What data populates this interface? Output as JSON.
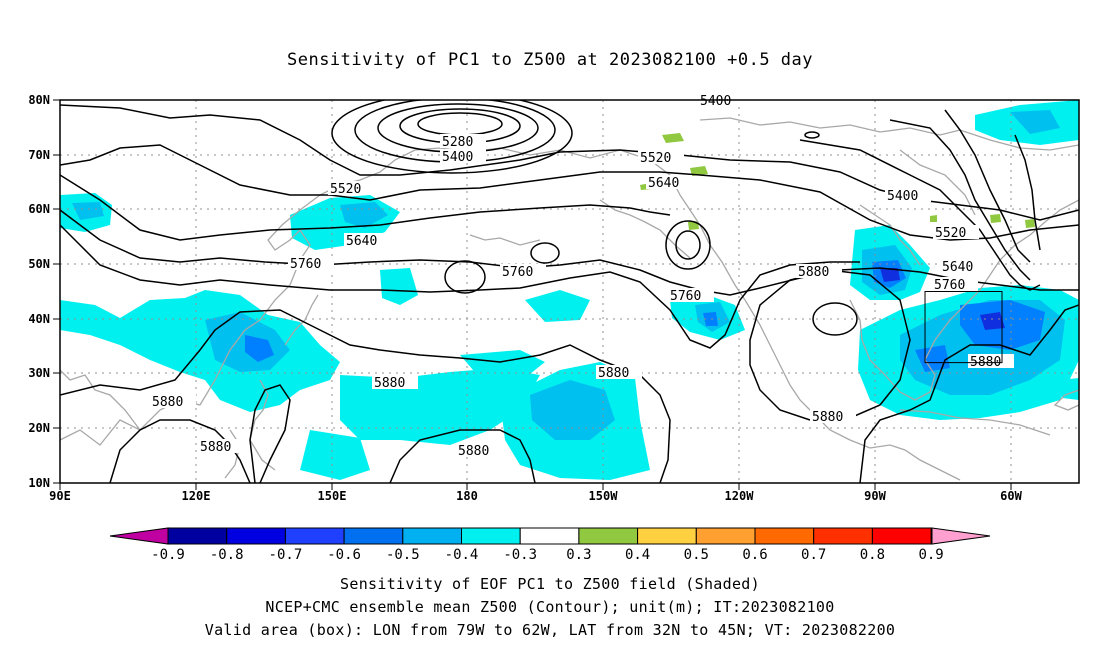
{
  "title": "Sensitivity of PC1 to Z500 at 2023082100 +0.5 day",
  "map": {
    "lat_labels": [
      "80N",
      "70N",
      "60N",
      "50N",
      "40N",
      "30N",
      "20N",
      "10N"
    ],
    "lon_labels": [
      "90E",
      "120E",
      "150E",
      "180",
      "150W",
      "120W",
      "90W",
      "60W"
    ],
    "contour_labels": [
      "5400",
      "5280",
      "5400",
      "5520",
      "5640",
      "5520",
      "5640",
      "5760",
      "5760",
      "5760",
      "5400",
      "5520",
      "5640",
      "5760",
      "5880",
      "5880",
      "5880",
      "5880",
      "5880",
      "5880",
      "5880",
      "5880"
    ],
    "valid_box": {
      "lon_min": -79,
      "lon_max": -62,
      "lat_min": 32,
      "lat_max": 45
    },
    "colors": {
      "contour": "#000000",
      "coast": "#a0a0a0",
      "grid": "#909090",
      "neg_light": "#00f0f0",
      "neg_mid": "#00c0f0",
      "neg_strong": "#0080ff",
      "neg_deep": "#1030e0"
    }
  },
  "colorbar": {
    "labels": [
      "-0.9",
      "-0.8",
      "-0.7",
      "-0.6",
      "-0.5",
      "-0.4",
      "-0.3",
      "0.3",
      "0.4",
      "0.5",
      "0.6",
      "0.7",
      "0.8",
      "0.9"
    ],
    "colors": [
      "#0000a0",
      "#0000e0",
      "#2040ff",
      "#0070f0",
      "#00b0f0",
      "#00f0f0",
      "#ffffff",
      "#90c840",
      "#ffd040",
      "#ffa030",
      "#ff6a00",
      "#ff3000",
      "#ff0000"
    ],
    "low_tip": "#c000a0",
    "high_tip": "#ffa0d0"
  },
  "footer": {
    "line1": "Sensitivity of EOF PC1 to Z500 field (Shaded)",
    "line2": "NCEP+CMC ensemble mean Z500 (Contour); unit(m); IT:2023082100",
    "line3": "Valid area (box): LON from 79W to 62W, LAT from 32N to 45N; VT: 2023082200"
  }
}
